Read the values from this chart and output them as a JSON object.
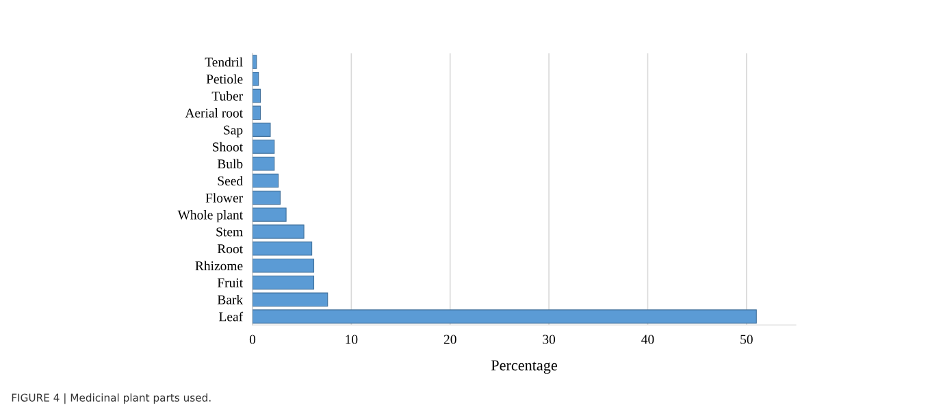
{
  "chart_data": {
    "type": "bar",
    "orientation": "horizontal",
    "xlabel": "Percentage",
    "categories": [
      "Tendril",
      "Petiole",
      "Tuber",
      "Aerial root",
      "Sap",
      "Shoot",
      "Bulb",
      "Seed",
      "Flower",
      "Whole plant",
      "Stem",
      "Root",
      "Rhizome",
      "Fruit",
      "Bark",
      "Leaf"
    ],
    "values": [
      0.4,
      0.6,
      0.8,
      0.8,
      1.8,
      2.2,
      2.2,
      2.6,
      2.8,
      3.4,
      5.2,
      6.0,
      6.2,
      6.2,
      7.6,
      51.0
    ],
    "color": "#5b9bd5",
    "xlim": [
      0,
      55
    ],
    "xticks": [
      0,
      10,
      20,
      30,
      40,
      50
    ],
    "grid": "x",
    "legend": false,
    "annotations": [
      "FIGURE 4 | Medicinal plant parts used."
    ]
  }
}
